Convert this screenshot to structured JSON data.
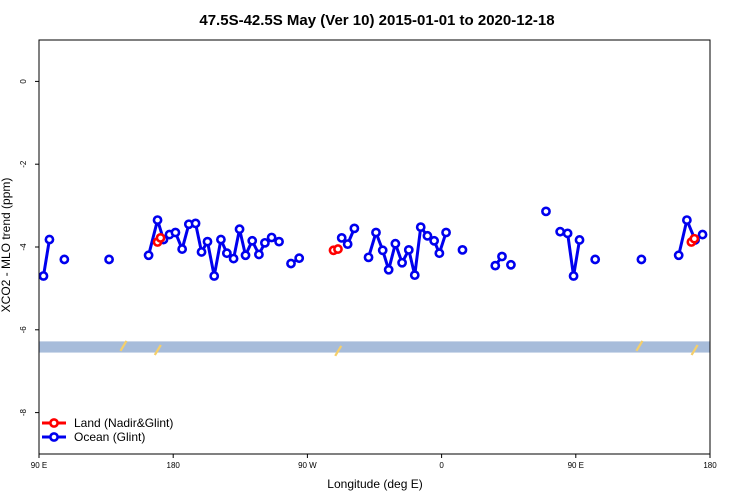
{
  "chart_data": {
    "type": "line",
    "title": "47.5S-42.5S May (Ver 10)   2015-01-01 to 2020-12-18",
    "xlabel": "Longitude (deg E)",
    "ylabel": "XCO2 - MLO trend (ppm)",
    "xlim": [
      90,
      540
    ],
    "ylim": [
      -9,
      1
    ],
    "x_ticks": [
      {
        "value": 90,
        "label": "90 E"
      },
      {
        "value": 180,
        "label": "180"
      },
      {
        "value": 270,
        "label": "90 W"
      },
      {
        "value": 360,
        "label": "0"
      },
      {
        "value": 450,
        "label": "90 E"
      },
      {
        "value": 540,
        "label": "180"
      }
    ],
    "y_ticks": [
      {
        "value": 0,
        "label": "0"
      },
      {
        "value": -2,
        "label": "-2"
      },
      {
        "value": -4,
        "label": "-4"
      },
      {
        "value": -6,
        "label": "-6"
      },
      {
        "value": -8,
        "label": "-8"
      }
    ],
    "grid": false,
    "legend_position": "bottom-left",
    "land_band": {
      "y_top": -6.28,
      "y_bottom": -6.55,
      "color": "#a7bcda"
    },
    "yellow_marks": [
      {
        "x": 146,
        "y": -6.28
      },
      {
        "x": 169,
        "y": -6.38
      },
      {
        "x": 290,
        "y": -6.4
      },
      {
        "x": 492,
        "y": -6.28
      },
      {
        "x": 529,
        "y": -6.38
      }
    ],
    "series": [
      {
        "name": "Land (Nadir&Glint)",
        "color": "#ff0000",
        "segments": [
          [
            [
              169.5,
              -3.88
            ],
            [
              171.5,
              -3.78
            ]
          ],
          [
            [
              287.5,
              -4.08
            ],
            [
              290.5,
              -4.05
            ]
          ],
          [
            [
              527.5,
              -3.88
            ],
            [
              529.5,
              -3.8
            ]
          ]
        ]
      },
      {
        "name": "Ocean (Glint)",
        "color": "#0000ee",
        "segments": [
          [
            [
              93,
              -4.7
            ],
            [
              97,
              -3.82
            ]
          ],
          [
            [
              107,
              -4.3
            ]
          ],
          [
            [
              137,
              -4.3
            ]
          ],
          [
            [
              163.5,
              -4.2
            ],
            [
              169.5,
              -3.35
            ],
            [
              173.5,
              -3.82
            ],
            [
              177.5,
              -3.7
            ],
            [
              181.5,
              -3.65
            ],
            [
              186,
              -4.05
            ],
            [
              190.5,
              -3.45
            ],
            [
              195,
              -3.43
            ],
            [
              199,
              -4.12
            ],
            [
              203,
              -3.87
            ],
            [
              207.5,
              -4.7
            ],
            [
              212,
              -3.82
            ],
            [
              216,
              -4.15
            ],
            [
              220.5,
              -4.28
            ],
            [
              224.5,
              -3.57
            ],
            [
              228.5,
              -4.2
            ],
            [
              233,
              -3.85
            ],
            [
              237.5,
              -4.18
            ],
            [
              241.5,
              -3.9
            ],
            [
              246,
              -3.77
            ],
            [
              251,
              -3.87
            ]
          ],
          [
            [
              259,
              -4.4
            ],
            [
              264.5,
              -4.27
            ]
          ],
          [
            [
              293,
              -3.78
            ],
            [
              297,
              -3.93
            ],
            [
              301.5,
              -3.55
            ]
          ],
          [
            [
              311,
              -4.25
            ],
            [
              316,
              -3.65
            ],
            [
              320.5,
              -4.08
            ],
            [
              324.5,
              -4.55
            ],
            [
              329,
              -3.92
            ],
            [
              333.5,
              -4.38
            ],
            [
              338,
              -4.07
            ],
            [
              342,
              -4.68
            ],
            [
              346,
              -3.52
            ],
            [
              350.5,
              -3.73
            ],
            [
              355,
              -3.85
            ],
            [
              358.5,
              -4.15
            ],
            [
              363,
              -3.65
            ]
          ],
          [
            [
              374,
              -4.07
            ]
          ],
          [
            [
              396,
              -4.45
            ],
            [
              400.5,
              -4.23
            ]
          ],
          [
            [
              406.5,
              -4.43
            ]
          ],
          [
            [
              430,
              -3.14
            ]
          ],
          [
            [
              439.5,
              -3.63
            ],
            [
              444.5,
              -3.67
            ],
            [
              448.5,
              -4.7
            ],
            [
              452.5,
              -3.83
            ]
          ],
          [
            [
              463,
              -4.3
            ]
          ],
          [
            [
              494,
              -4.3
            ]
          ],
          [
            [
              519,
              -4.2
            ],
            [
              524.5,
              -3.35
            ],
            [
              530,
              -3.83
            ],
            [
              535,
              -3.7
            ]
          ]
        ]
      }
    ]
  }
}
